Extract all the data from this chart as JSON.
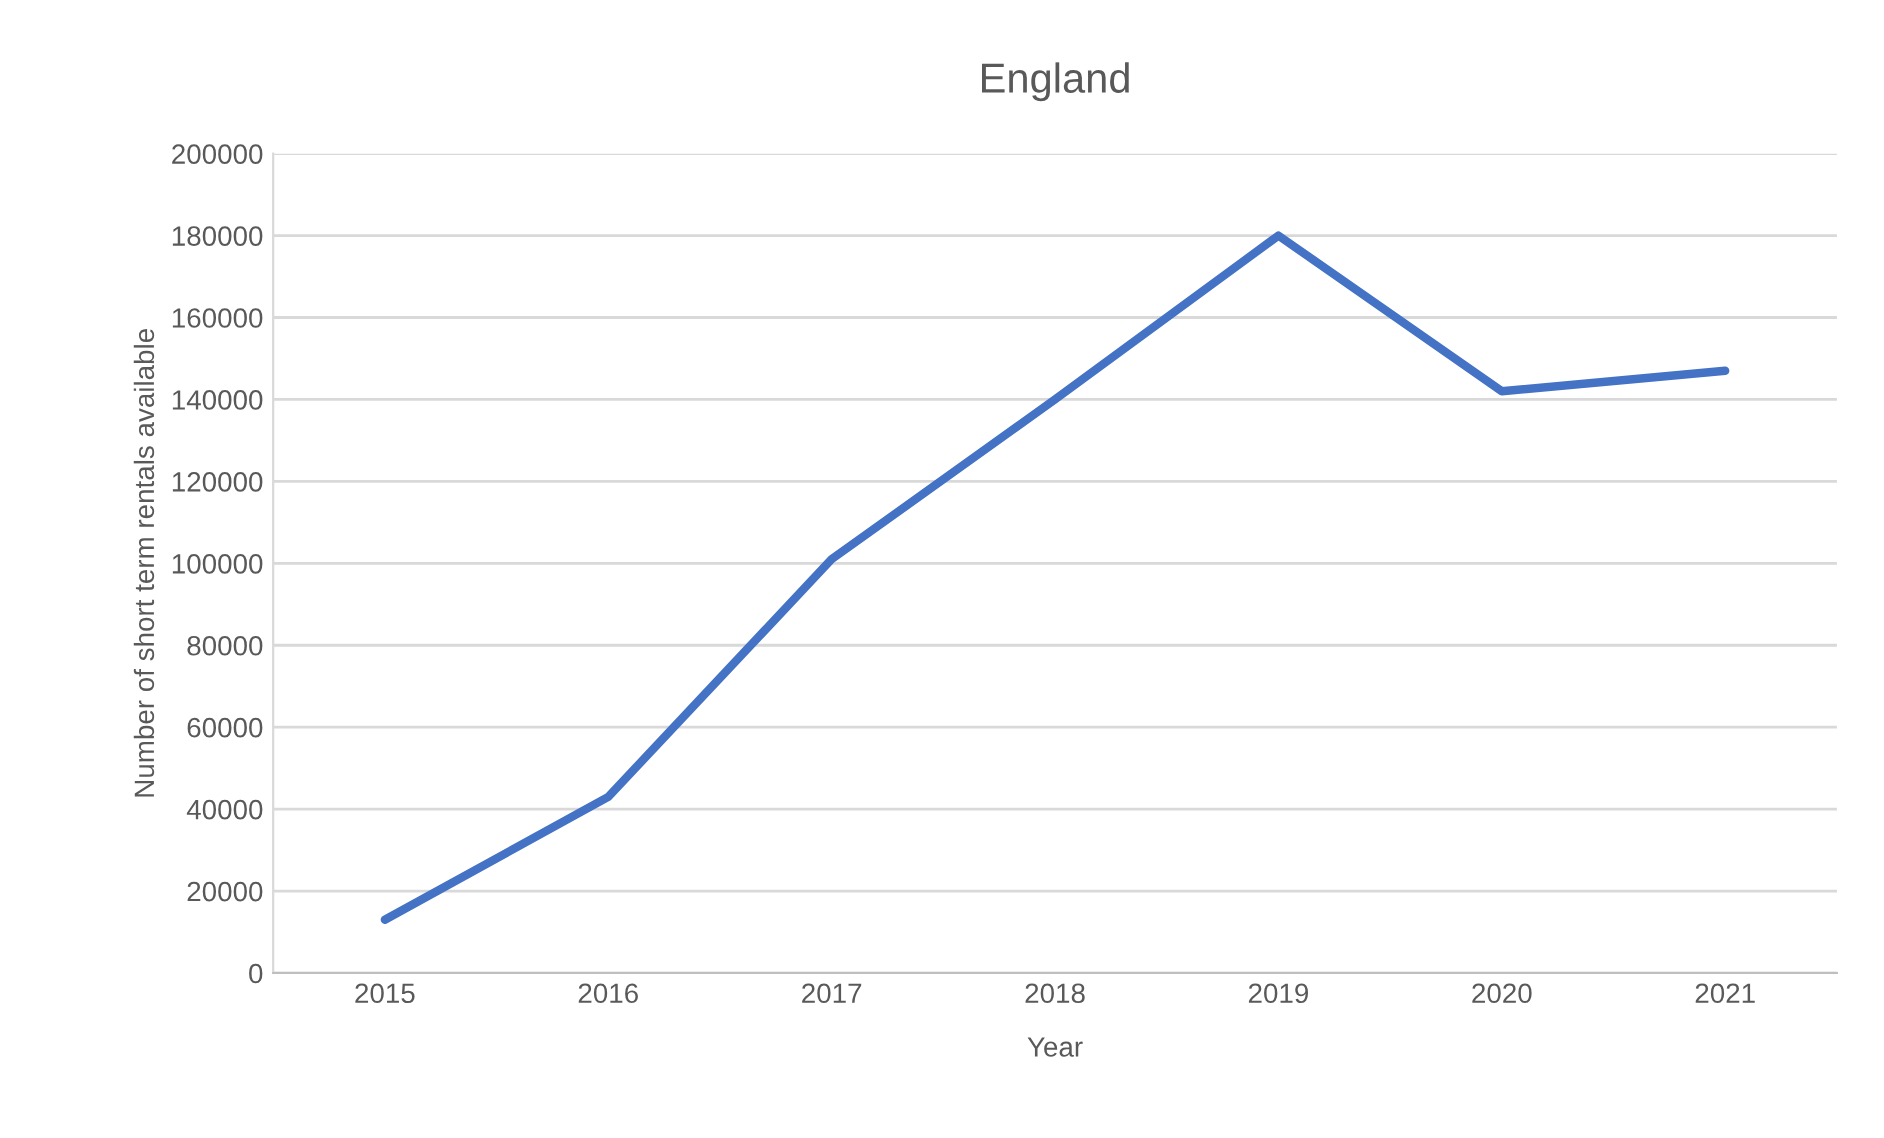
{
  "chart_data": {
    "type": "line",
    "title": "England",
    "xlabel": "Year",
    "ylabel": "Number of short term rentals available",
    "categories": [
      "2015",
      "2016",
      "2017",
      "2018",
      "2019",
      "2020",
      "2021"
    ],
    "series": [
      {
        "color": "#4472c4",
        "values": [
          13000,
          43000,
          101000,
          140000,
          180000,
          142000,
          147000
        ]
      }
    ],
    "ylim": [
      0,
      200000
    ],
    "yticks": [
      0,
      20000,
      40000,
      60000,
      80000,
      100000,
      120000,
      140000,
      160000,
      180000,
      200000
    ],
    "grid": "y",
    "legend": false,
    "marker": "none",
    "line_style": "solid"
  }
}
